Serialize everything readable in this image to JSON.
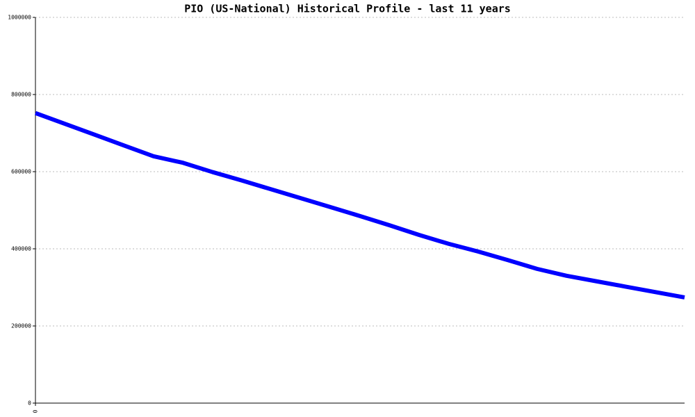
{
  "chart_data": {
    "type": "line",
    "title": "PIO (US-National) Historical Profile - last 11 years",
    "categories": [
      "0",
      null,
      null,
      null,
      null,
      null,
      null,
      null,
      null,
      null,
      null,
      null,
      null,
      null,
      null,
      null,
      null,
      null,
      null,
      null,
      null,
      null,
      null
    ],
    "series": [
      {
        "color": "#0000ff",
        "values": [
          752000,
          724000,
          696000,
          668000,
          640000,
          623000,
          599000,
          577000,
          554000,
          531000,
          508000,
          485000,
          461000,
          436000,
          413000,
          393000,
          371000,
          348000,
          330000,
          316000,
          302000,
          288000,
          274000
        ]
      }
    ],
    "ylim": [
      0,
      1000000
    ],
    "yticks": [
      0,
      200000,
      400000,
      600000,
      800000,
      1000000
    ],
    "grid": true
  }
}
